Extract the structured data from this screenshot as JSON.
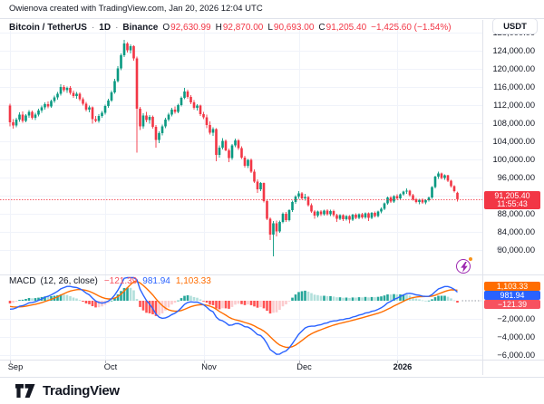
{
  "attribution": {
    "text": "Owienova created with TradingView.com, Jan 20, 2026 12:04 UTC"
  },
  "symbol_bar": {
    "symbol": "Bitcoin / TetherUS",
    "sep": "·",
    "interval": "1D",
    "exchange": "Binance",
    "ohlc": {
      "o_label": "O",
      "o": "92,630.99",
      "h_label": "H",
      "h": "92,870.00",
      "l_label": "L",
      "l": "90,693.00",
      "c_label": "C",
      "c": "91,205.40"
    },
    "change": "−1,425.60 (−1.54%)",
    "currency_button": "USDT"
  },
  "price_badge": {
    "value": "91,205.40",
    "countdown": "11:55:43"
  },
  "macd_legend": {
    "title": "MACD",
    "params": "(12, 26, close)",
    "hist_value": "−121.39",
    "macd_value": "981.94",
    "signal_value": "1,103.33"
  },
  "footer": {
    "brand": "TradingView"
  },
  "colors": {
    "up": "#089981",
    "down": "#F23645",
    "macd_line": "#2962FF",
    "signal_line": "#FF6D00",
    "hist_grow_above": "#26A69A",
    "hist_fall_above": "#B2DFDB",
    "hist_fall_below": "#FF5252",
    "hist_grow_below": "#FCCBCD",
    "grid": "#F0F3FA",
    "border": "#E0E3EB",
    "axis_text": "#131722",
    "muted": "#787B86",
    "badge_price": "#F23645",
    "badge_macd": "#2962FF",
    "badge_signal": "#FF6D00",
    "badge_hist": "#F7525F",
    "boost_purple": "#9C27B0"
  },
  "chart_data": {
    "type": "candlestick",
    "symbol": "Bitcoin / TetherUS",
    "exchange": "Binance",
    "interval": "1D",
    "quote_currency": "USDT",
    "current_price": 91205.4,
    "x_axis": {
      "ticks": [
        {
          "label": "Sep",
          "index": 0
        },
        {
          "label": "Oct",
          "index": 30
        },
        {
          "label": "Nov",
          "index": 61
        },
        {
          "label": "Dec",
          "index": 91
        },
        {
          "label": "2026",
          "index": 122,
          "bold": true
        }
      ]
    },
    "y_axis": {
      "ticks": [
        {
          "label": "128,000.00",
          "value": 128000
        },
        {
          "label": "124,000.00",
          "value": 124000
        },
        {
          "label": "120,000.00",
          "value": 120000
        },
        {
          "label": "116,000.00",
          "value": 116000
        },
        {
          "label": "112,000.00",
          "value": 112000
        },
        {
          "label": "108,000.00",
          "value": 108000
        },
        {
          "label": "104,000.00",
          "value": 104000
        },
        {
          "label": "100,000.00",
          "value": 100000
        },
        {
          "label": "96,000.00",
          "value": 96000
        },
        {
          "label": "92,000.00",
          "value": 92000
        },
        {
          "label": "88,000.00",
          "value": 88000
        },
        {
          "label": "84,000.00",
          "value": 84000
        },
        {
          "label": "80,000.00",
          "value": 80000
        }
      ]
    },
    "indicator": {
      "name": "MACD",
      "params": "(12, 26, close)",
      "settings": {
        "fast": 12,
        "slow": 26,
        "source": "close",
        "signal_smoothing": 9
      },
      "last_values": {
        "histogram": -121.39,
        "macd": 981.94,
        "signal": 1103.33
      },
      "badges": [
        {
          "label": "1,103.33",
          "color_key": "badge_signal"
        },
        {
          "label": "981.94",
          "color_key": "badge_macd"
        },
        {
          "label": "−121.39",
          "color_key": "badge_hist"
        }
      ],
      "y_axis": {
        "ticks": [
          {
            "label": "−2,000.00",
            "value": -2000
          },
          {
            "label": "−4,000.00",
            "value": -4000
          },
          {
            "label": "−6,000.00",
            "value": -6000
          }
        ]
      }
    },
    "candles": [
      [
        111900,
        112300,
        107300,
        108200
      ],
      [
        108200,
        108900,
        106800,
        107500
      ],
      [
        107500,
        109200,
        107100,
        108800
      ],
      [
        108800,
        110400,
        108300,
        109900
      ],
      [
        109900,
        110600,
        108100,
        108500
      ],
      [
        108500,
        110000,
        108200,
        109700
      ],
      [
        109700,
        110900,
        109200,
        110500
      ],
      [
        110500,
        110800,
        108800,
        109200
      ],
      [
        109200,
        110300,
        108700,
        109900
      ],
      [
        109900,
        111200,
        109500,
        110800
      ],
      [
        110800,
        111900,
        110300,
        111500
      ],
      [
        111500,
        112600,
        111000,
        112200
      ],
      [
        112200,
        112800,
        111300,
        111700
      ],
      [
        111700,
        113200,
        111400,
        112900
      ],
      [
        112900,
        114100,
        112500,
        113700
      ],
      [
        113700,
        114900,
        113200,
        114500
      ],
      [
        114500,
        116600,
        114100,
        116000
      ],
      [
        116000,
        116400,
        114900,
        115300
      ],
      [
        115300,
        116100,
        114700,
        115800
      ],
      [
        115800,
        116200,
        114300,
        114700
      ],
      [
        114700,
        115200,
        113600,
        114000
      ],
      [
        114000,
        114900,
        113400,
        114500
      ],
      [
        114500,
        114800,
        112900,
        113300
      ],
      [
        113300,
        113700,
        111900,
        112300
      ],
      [
        112300,
        112700,
        110600,
        111000
      ],
      [
        111000,
        111900,
        110400,
        111500
      ],
      [
        111500,
        111700,
        107900,
        108900
      ],
      [
        108900,
        109600,
        108200,
        108500
      ],
      [
        108500,
        110000,
        108100,
        109600
      ],
      [
        109600,
        110700,
        109200,
        110300
      ],
      [
        110300,
        112100,
        109900,
        111800
      ],
      [
        111800,
        113400,
        111400,
        113000
      ],
      [
        113000,
        115200,
        112700,
        114800
      ],
      [
        114800,
        117800,
        114500,
        117300
      ],
      [
        117300,
        120600,
        117000,
        120100
      ],
      [
        120100,
        123400,
        119700,
        123000
      ],
      [
        123000,
        126400,
        122600,
        125600
      ],
      [
        125600,
        125900,
        123600,
        124100
      ],
      [
        124100,
        125400,
        123400,
        125000
      ],
      [
        125000,
        125200,
        121800,
        122300
      ],
      [
        122300,
        122700,
        101500,
        111200
      ],
      [
        111200,
        111600,
        106500,
        107300
      ],
      [
        107300,
        110200,
        106800,
        109700
      ],
      [
        109700,
        110500,
        108200,
        108700
      ],
      [
        108700,
        109800,
        107900,
        109400
      ],
      [
        109400,
        109700,
        106800,
        107200
      ],
      [
        107200,
        107600,
        102600,
        104300
      ],
      [
        104300,
        106200,
        103600,
        105800
      ],
      [
        105800,
        107700,
        105300,
        107300
      ],
      [
        107300,
        109200,
        106900,
        108800
      ],
      [
        108800,
        110300,
        108400,
        109900
      ],
      [
        109900,
        111400,
        109500,
        111000
      ],
      [
        111000,
        111700,
        110100,
        110500
      ],
      [
        110500,
        112300,
        110200,
        112000
      ],
      [
        112000,
        113900,
        111700,
        113600
      ],
      [
        113600,
        115800,
        113300,
        115000
      ],
      [
        115000,
        115400,
        113400,
        113800
      ],
      [
        113800,
        114200,
        112200,
        112600
      ],
      [
        112600,
        113100,
        111000,
        111400
      ],
      [
        111400,
        112200,
        110800,
        111900
      ],
      [
        111900,
        112100,
        109600,
        110000
      ],
      [
        110000,
        110500,
        108900,
        109300
      ],
      [
        109300,
        109900,
        106900,
        107600
      ],
      [
        107600,
        108400,
        105500,
        105900
      ],
      [
        105900,
        107100,
        105200,
        106700
      ],
      [
        106700,
        106900,
        99600,
        101000
      ],
      [
        101000,
        103100,
        100400,
        102600
      ],
      [
        102600,
        104700,
        102200,
        104100
      ],
      [
        104100,
        104400,
        101800,
        102000
      ],
      [
        102000,
        102400,
        99400,
        100300
      ],
      [
        100300,
        103400,
        99900,
        103100
      ],
      [
        103100,
        104600,
        102700,
        104200
      ],
      [
        104200,
        104500,
        102100,
        102500
      ],
      [
        102500,
        102900,
        100100,
        100400
      ],
      [
        100400,
        100800,
        98200,
        98600
      ],
      [
        98600,
        100100,
        98100,
        99900
      ],
      [
        99900,
        100200,
        97000,
        97300
      ],
      [
        97300,
        97800,
        94800,
        95100
      ],
      [
        95100,
        95600,
        92600,
        93400
      ],
      [
        93400,
        95000,
        93000,
        94800
      ],
      [
        94800,
        94900,
        90500,
        90800
      ],
      [
        90800,
        91200,
        86600,
        86900
      ],
      [
        86900,
        87200,
        82200,
        83400
      ],
      [
        83400,
        86400,
        78600,
        85900
      ],
      [
        85900,
        86500,
        83000,
        84100
      ],
      [
        84100,
        86500,
        83800,
        86200
      ],
      [
        86200,
        88300,
        85900,
        88000
      ],
      [
        88000,
        88400,
        86200,
        86600
      ],
      [
        86600,
        89000,
        86300,
        88800
      ],
      [
        88800,
        90900,
        88400,
        90600
      ],
      [
        90600,
        92100,
        90200,
        91800
      ],
      [
        91800,
        93000,
        91300,
        92500
      ],
      [
        92500,
        92800,
        91100,
        91400
      ],
      [
        91400,
        92400,
        90900,
        91700
      ],
      [
        91700,
        91900,
        89600,
        89900
      ],
      [
        89900,
        90300,
        88200,
        88500
      ],
      [
        88500,
        88800,
        86900,
        87600
      ],
      [
        87600,
        88700,
        87200,
        88500
      ],
      [
        88500,
        88800,
        87500,
        87900
      ],
      [
        87900,
        88900,
        87600,
        88700
      ],
      [
        88700,
        89000,
        87600,
        87900
      ],
      [
        87900,
        88900,
        87500,
        88600
      ],
      [
        88600,
        88900,
        87300,
        87700
      ],
      [
        87700,
        88000,
        86200,
        86900
      ],
      [
        86900,
        87900,
        86600,
        87700
      ],
      [
        87700,
        87900,
        86400,
        86800
      ],
      [
        86800,
        87700,
        86500,
        87500
      ],
      [
        87500,
        87700,
        85900,
        86700
      ],
      [
        86700,
        88000,
        86400,
        87800
      ],
      [
        87800,
        88100,
        86800,
        87100
      ],
      [
        87100,
        88100,
        86800,
        87900
      ],
      [
        87900,
        88200,
        86900,
        87200
      ],
      [
        87200,
        88300,
        86900,
        88100
      ],
      [
        88100,
        88300,
        86400,
        87100
      ],
      [
        87100,
        88400,
        86800,
        88200
      ],
      [
        88200,
        88500,
        87200,
        87500
      ],
      [
        87500,
        88700,
        87200,
        88500
      ],
      [
        88500,
        89400,
        88100,
        89100
      ],
      [
        89100,
        90500,
        88800,
        90300
      ],
      [
        90300,
        91800,
        90000,
        91600
      ],
      [
        91600,
        91900,
        90400,
        90700
      ],
      [
        90700,
        92100,
        90400,
        91900
      ],
      [
        91900,
        92300,
        91100,
        91400
      ],
      [
        91400,
        92500,
        91200,
        92300
      ],
      [
        92300,
        93100,
        92000,
        92900
      ],
      [
        92900,
        93600,
        92400,
        93100
      ],
      [
        93100,
        93300,
        91800,
        92100
      ],
      [
        92100,
        92400,
        90900,
        91200
      ],
      [
        91200,
        91500,
        90300,
        90600
      ],
      [
        90600,
        91300,
        90100,
        91100
      ],
      [
        91100,
        91400,
        90200,
        90500
      ],
      [
        90500,
        91200,
        90100,
        91000
      ],
      [
        91000,
        91800,
        90700,
        91600
      ],
      [
        91600,
        94100,
        91300,
        93900
      ],
      [
        93900,
        96400,
        93600,
        96200
      ],
      [
        96200,
        97300,
        95700,
        96900
      ],
      [
        96900,
        97100,
        95600,
        95900
      ],
      [
        95900,
        96700,
        95500,
        96500
      ],
      [
        96500,
        96600,
        95000,
        95300
      ],
      [
        95300,
        95500,
        93800,
        94100
      ],
      [
        94100,
        94300,
        92700,
        93000
      ],
      [
        92630.99,
        92870,
        90693,
        91205.4
      ]
    ]
  }
}
